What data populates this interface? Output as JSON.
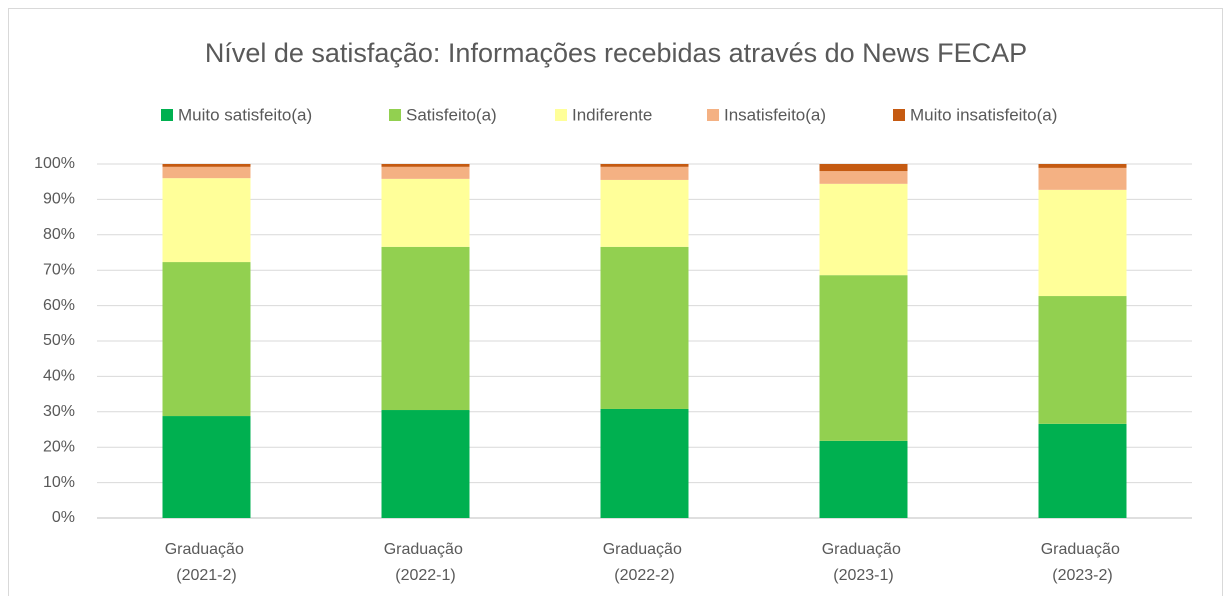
{
  "chart_data": {
    "type": "stacked_bar",
    "title": "Nível de satisfação: Informações recebidas através do News FECAP",
    "categories": [
      "Graduação (2021-2)",
      "Graduação (2022-1)",
      "Graduação (2022-2)",
      "Graduação (2023-1)",
      "Graduação (2023-2)"
    ],
    "series": [
      {
        "name": "Muito satisfeito(a)",
        "color": "#00b050",
        "values": [
          28.8,
          30.5,
          30.8,
          21.8,
          26.6
        ]
      },
      {
        "name": "Satisfeito(a)",
        "color": "#92d050",
        "values": [
          43.5,
          46.1,
          45.8,
          46.8,
          36.1
        ]
      },
      {
        "name": "Indiferente",
        "color": "#ffff99",
        "values": [
          23.7,
          19.2,
          18.9,
          25.8,
          30.0
        ]
      },
      {
        "name": "Insatisfeito(a)",
        "color": "#f4b183",
        "values": [
          3.2,
          3.4,
          3.7,
          3.6,
          6.2
        ]
      },
      {
        "name": "Muito insatisfeito(a)",
        "color": "#c55a11",
        "values": [
          0.8,
          0.8,
          0.8,
          2.0,
          1.1
        ]
      }
    ],
    "ylim": [
      0,
      100
    ],
    "yticks": [
      {
        "value": 0,
        "label": "0%"
      },
      {
        "value": 10,
        "label": "10%"
      },
      {
        "value": 20,
        "label": "20%"
      },
      {
        "value": 30,
        "label": "30%"
      },
      {
        "value": 40,
        "label": "40%"
      },
      {
        "value": 50,
        "label": "50%"
      },
      {
        "value": 60,
        "label": "60%"
      },
      {
        "value": 70,
        "label": "70%"
      },
      {
        "value": 80,
        "label": "80%"
      },
      {
        "value": 90,
        "label": "90%"
      },
      {
        "value": 100,
        "label": "100%"
      }
    ],
    "grid": true,
    "legend": "top"
  }
}
